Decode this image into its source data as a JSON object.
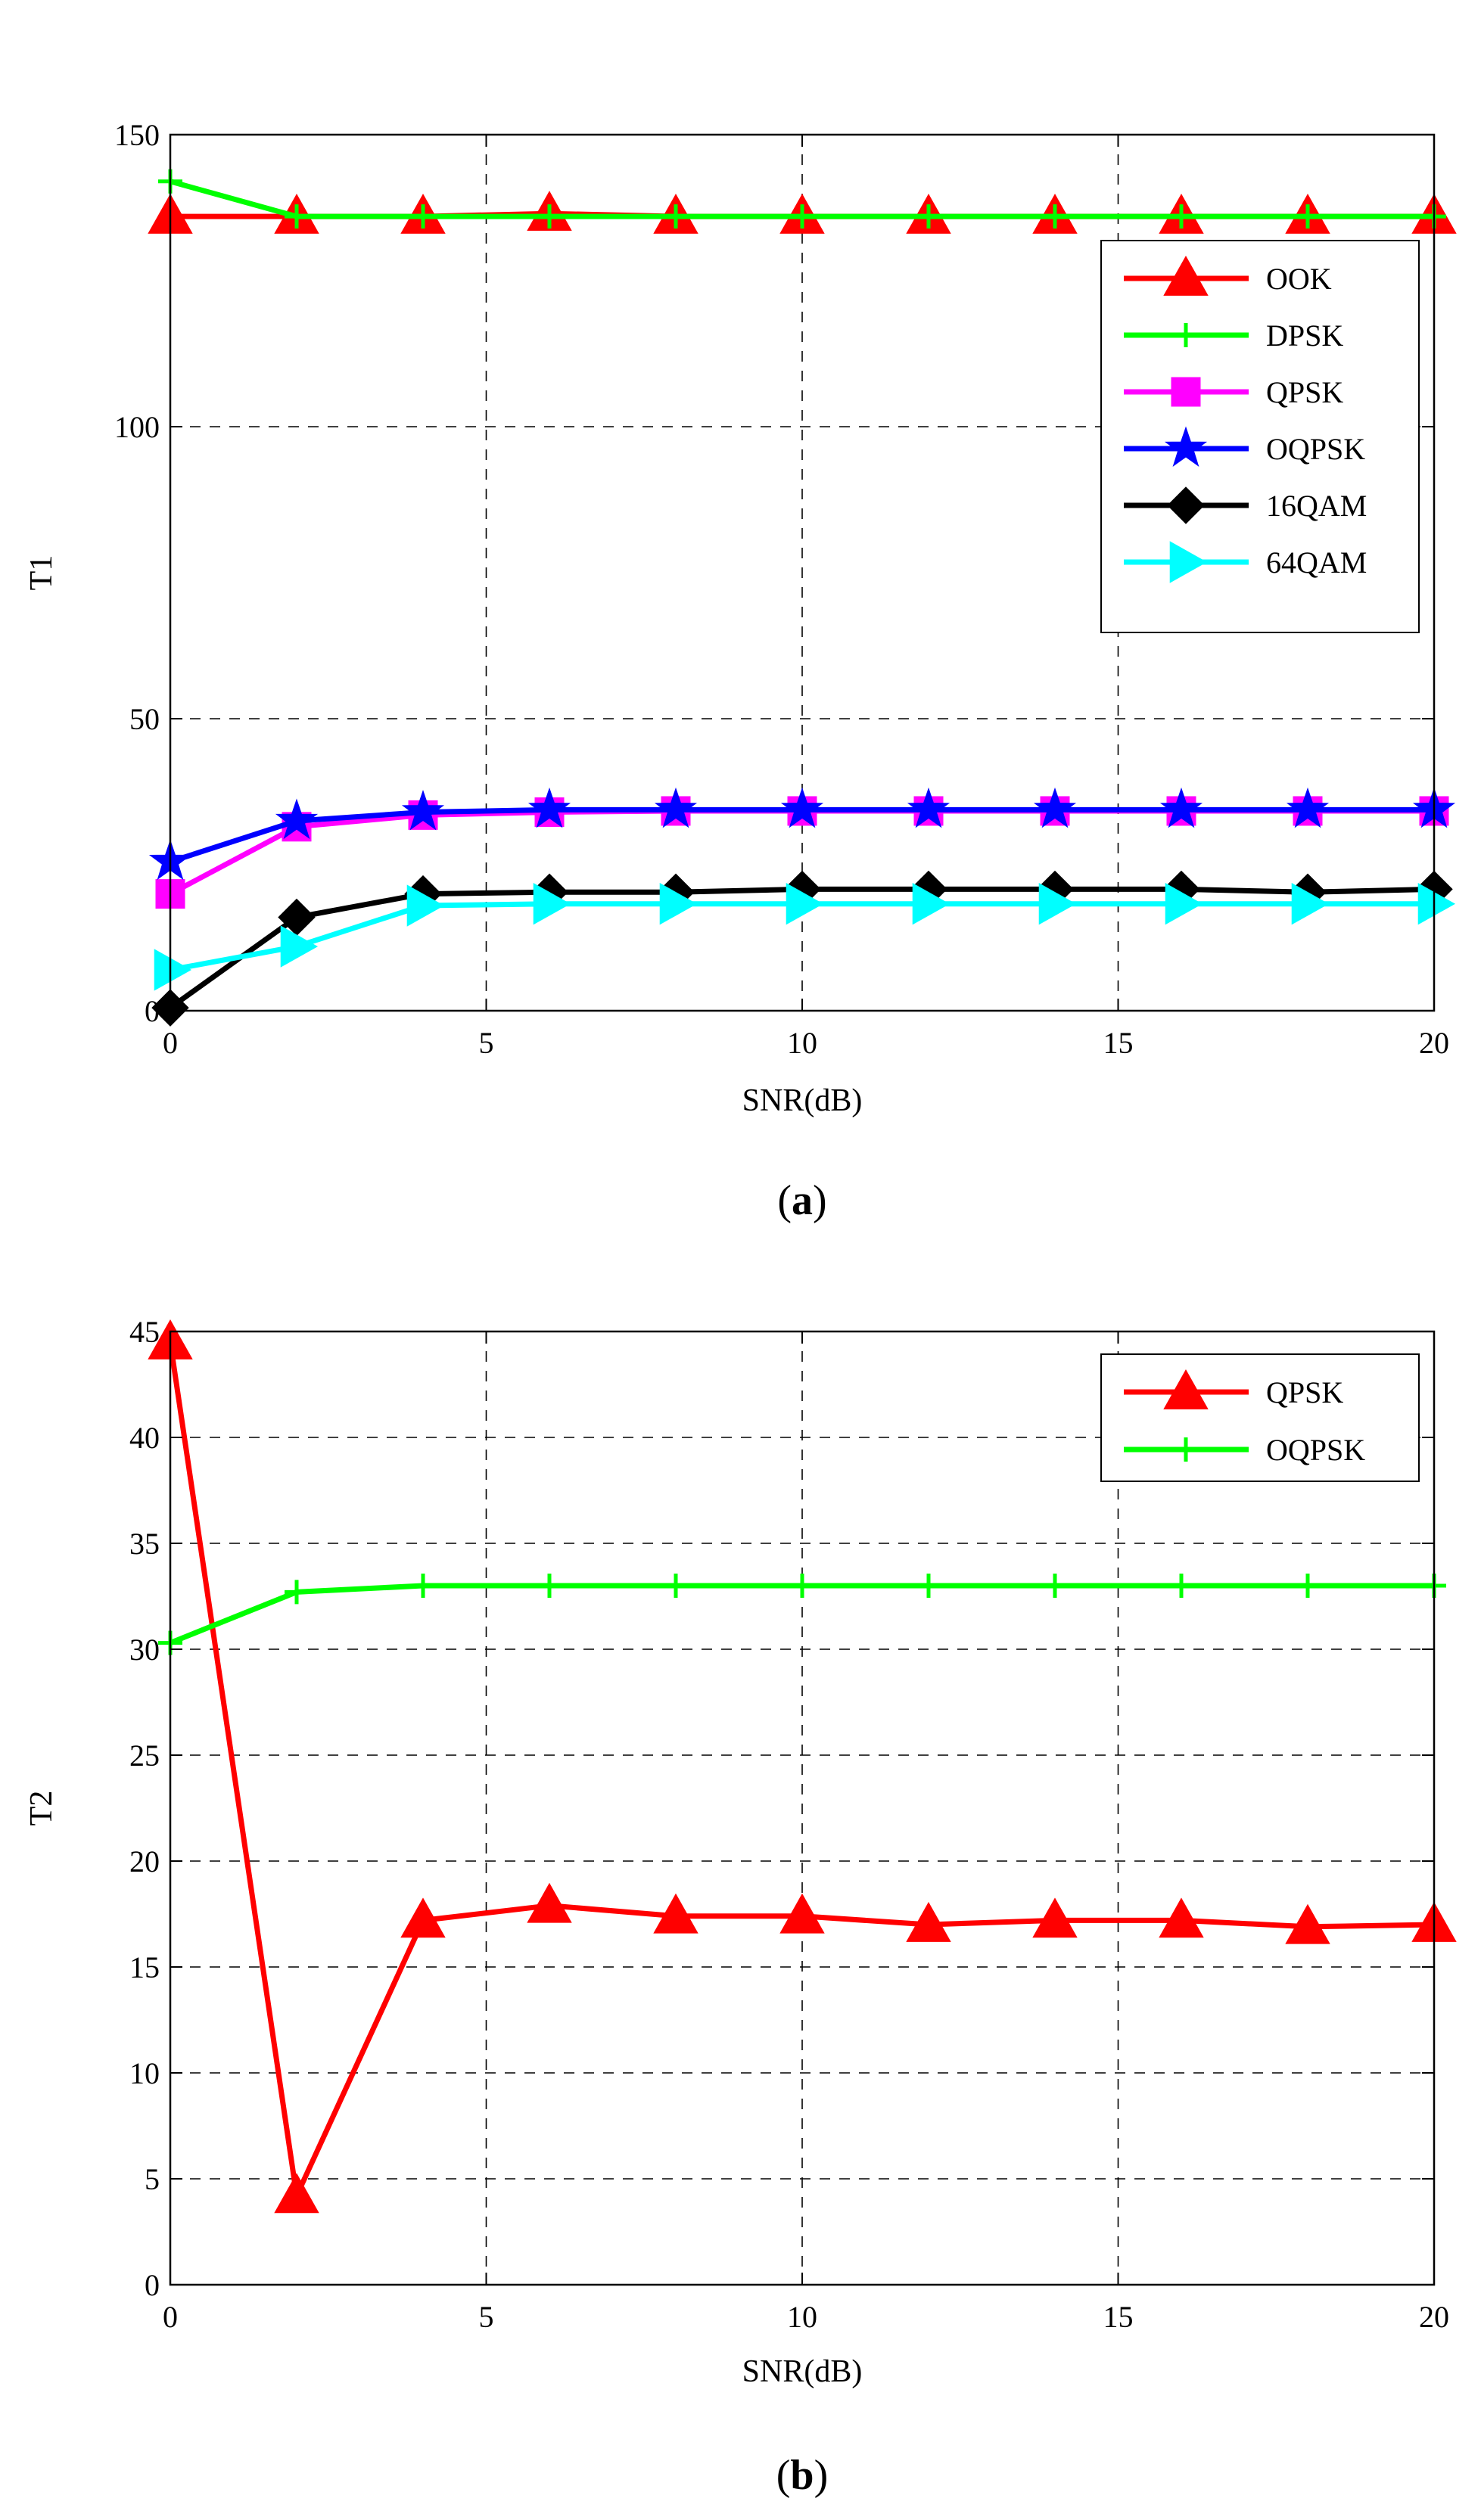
{
  "chart_data": [
    {
      "id": "a",
      "type": "line",
      "caption_open": "(",
      "caption_letter": "a",
      "caption_close": ")",
      "xlabel": "SNR(dB)",
      "ylabel": "T1",
      "xlim": [
        0,
        20
      ],
      "ylim": [
        0,
        150
      ],
      "xticks": [
        0,
        5,
        10,
        15,
        20
      ],
      "yticks": [
        0,
        50,
        100,
        150
      ],
      "grid": true,
      "legend": "upper-right",
      "x": [
        0,
        2,
        4,
        6,
        8,
        10,
        12,
        14,
        16,
        18,
        20
      ],
      "series": [
        {
          "name": "OOK",
          "color": "#ff0000",
          "marker": "triangle-up",
          "values": [
            136,
            136,
            136,
            136.5,
            136,
            136,
            136,
            136,
            136,
            136,
            136
          ]
        },
        {
          "name": "DPSK",
          "color": "#00ff00",
          "marker": "plus",
          "values": [
            142,
            136,
            136,
            136,
            136,
            136,
            136,
            136,
            136,
            136,
            136
          ]
        },
        {
          "name": "QPSK",
          "color": "#ff00ff",
          "marker": "square",
          "values": [
            20,
            31.5,
            33.5,
            34,
            34.2,
            34.2,
            34.2,
            34.2,
            34.2,
            34.2,
            34.2
          ]
        },
        {
          "name": "OQPSK",
          "color": "#0000ff",
          "marker": "star",
          "values": [
            25.5,
            32.5,
            34,
            34.4,
            34.4,
            34.4,
            34.4,
            34.4,
            34.4,
            34.4,
            34.4
          ]
        },
        {
          "name": "16QAM",
          "color": "#000000",
          "marker": "diamond",
          "values": [
            0.5,
            16,
            20,
            20.3,
            20.3,
            20.8,
            20.8,
            20.8,
            20.8,
            20.3,
            20.8
          ]
        },
        {
          "name": "64QAM",
          "color": "#00ffff",
          "marker": "triangle-right",
          "values": [
            7,
            11,
            18,
            18.3,
            18.3,
            18.3,
            18.3,
            18.3,
            18.3,
            18.3,
            18.3
          ]
        }
      ]
    },
    {
      "id": "b",
      "type": "line",
      "caption_open": "(",
      "caption_letter": "b",
      "caption_close": ")",
      "xlabel": "SNR(dB)",
      "ylabel": "T2",
      "xlim": [
        0,
        20
      ],
      "ylim": [
        0,
        45
      ],
      "xticks": [
        0,
        5,
        10,
        15,
        20
      ],
      "yticks": [
        0,
        5,
        10,
        15,
        20,
        25,
        30,
        35,
        40,
        45
      ],
      "grid": true,
      "legend": "upper-right",
      "x": [
        0,
        2,
        4,
        6,
        8,
        10,
        12,
        14,
        16,
        18,
        20
      ],
      "series": [
        {
          "name": "QPSK",
          "color": "#ff0000",
          "marker": "triangle-up",
          "values": [
            44.5,
            4.2,
            17.2,
            17.9,
            17.4,
            17.4,
            17.0,
            17.2,
            17.2,
            16.9,
            17.0
          ]
        },
        {
          "name": "OQPSK",
          "color": "#00ff00",
          "marker": "plus",
          "values": [
            30.3,
            32.7,
            33.0,
            33.0,
            33.0,
            33.0,
            33.0,
            33.0,
            33.0,
            33.0,
            33.0
          ]
        }
      ]
    }
  ]
}
